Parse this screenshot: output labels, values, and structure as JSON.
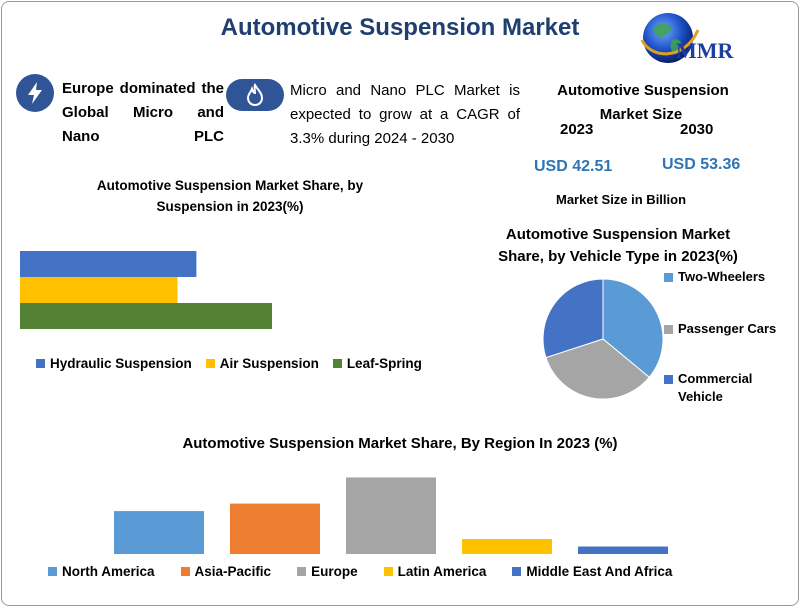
{
  "title": "Automotive Suspension Market",
  "logo": {
    "text": "MMR",
    "icon": "globe-icon"
  },
  "statements": [
    {
      "icon": "lightning-icon",
      "text": "Europe dominated the Global Micro and Nano PLC"
    },
    {
      "icon": "flame-icon",
      "text": "Micro and Nano PLC Market is expected to grow at a CAGR of 3.3% during 2024 - 2030"
    }
  ],
  "market_size": {
    "title_line1": "Automotive Suspension",
    "title_line2": "Market Size",
    "year1": "2023",
    "year2": "2030",
    "value1": "USD 42.51",
    "value2": "USD 53.36",
    "unit": "Market Size in Billion"
  },
  "colors": {
    "title": "#1f3f6e",
    "blue": "#4472c4",
    "yellow": "#ffc000",
    "green": "#548235",
    "light_blue": "#5b9bd5",
    "orange": "#ed7d31",
    "gray": "#a5a5a5",
    "dark_blue": "#4472c4"
  },
  "chart_data": [
    {
      "type": "bar",
      "orientation": "horizontal",
      "title_line1": "Automotive Suspension Market Share, by",
      "title_line2": "Suspension in 2023(%)",
      "categories": [
        "Hydraulic Suspension",
        "Air Suspension",
        "Leaf-Spring"
      ],
      "values": [
        28,
        25,
        40
      ],
      "xlim": [
        0,
        80
      ],
      "legend": "bottom",
      "grid": false
    },
    {
      "type": "pie",
      "title_line1": "Automotive Suspension Market",
      "title_line2": "Share, by Vehicle Type in 2023(%)",
      "categories": [
        "Two-Wheelers",
        "Passenger Cars",
        "Commercial Vehicle"
      ],
      "category_lines": [
        [
          "Two-Wheelers"
        ],
        [
          "Passenger Cars"
        ],
        [
          "Commercial",
          "Vehicle"
        ]
      ],
      "values": [
        36,
        34,
        30
      ],
      "legend": "right"
    },
    {
      "type": "bar",
      "orientation": "vertical",
      "title": "Automotive Suspension Market Share, By Region In 2023 (%)",
      "categories": [
        "North America",
        "Asia-Pacific",
        "Europe",
        "Latin America",
        "Middle East And Africa"
      ],
      "values": [
        23,
        27,
        41,
        8,
        4
      ],
      "ylim": [
        0,
        45
      ],
      "legend": "bottom",
      "grid": false
    }
  ]
}
